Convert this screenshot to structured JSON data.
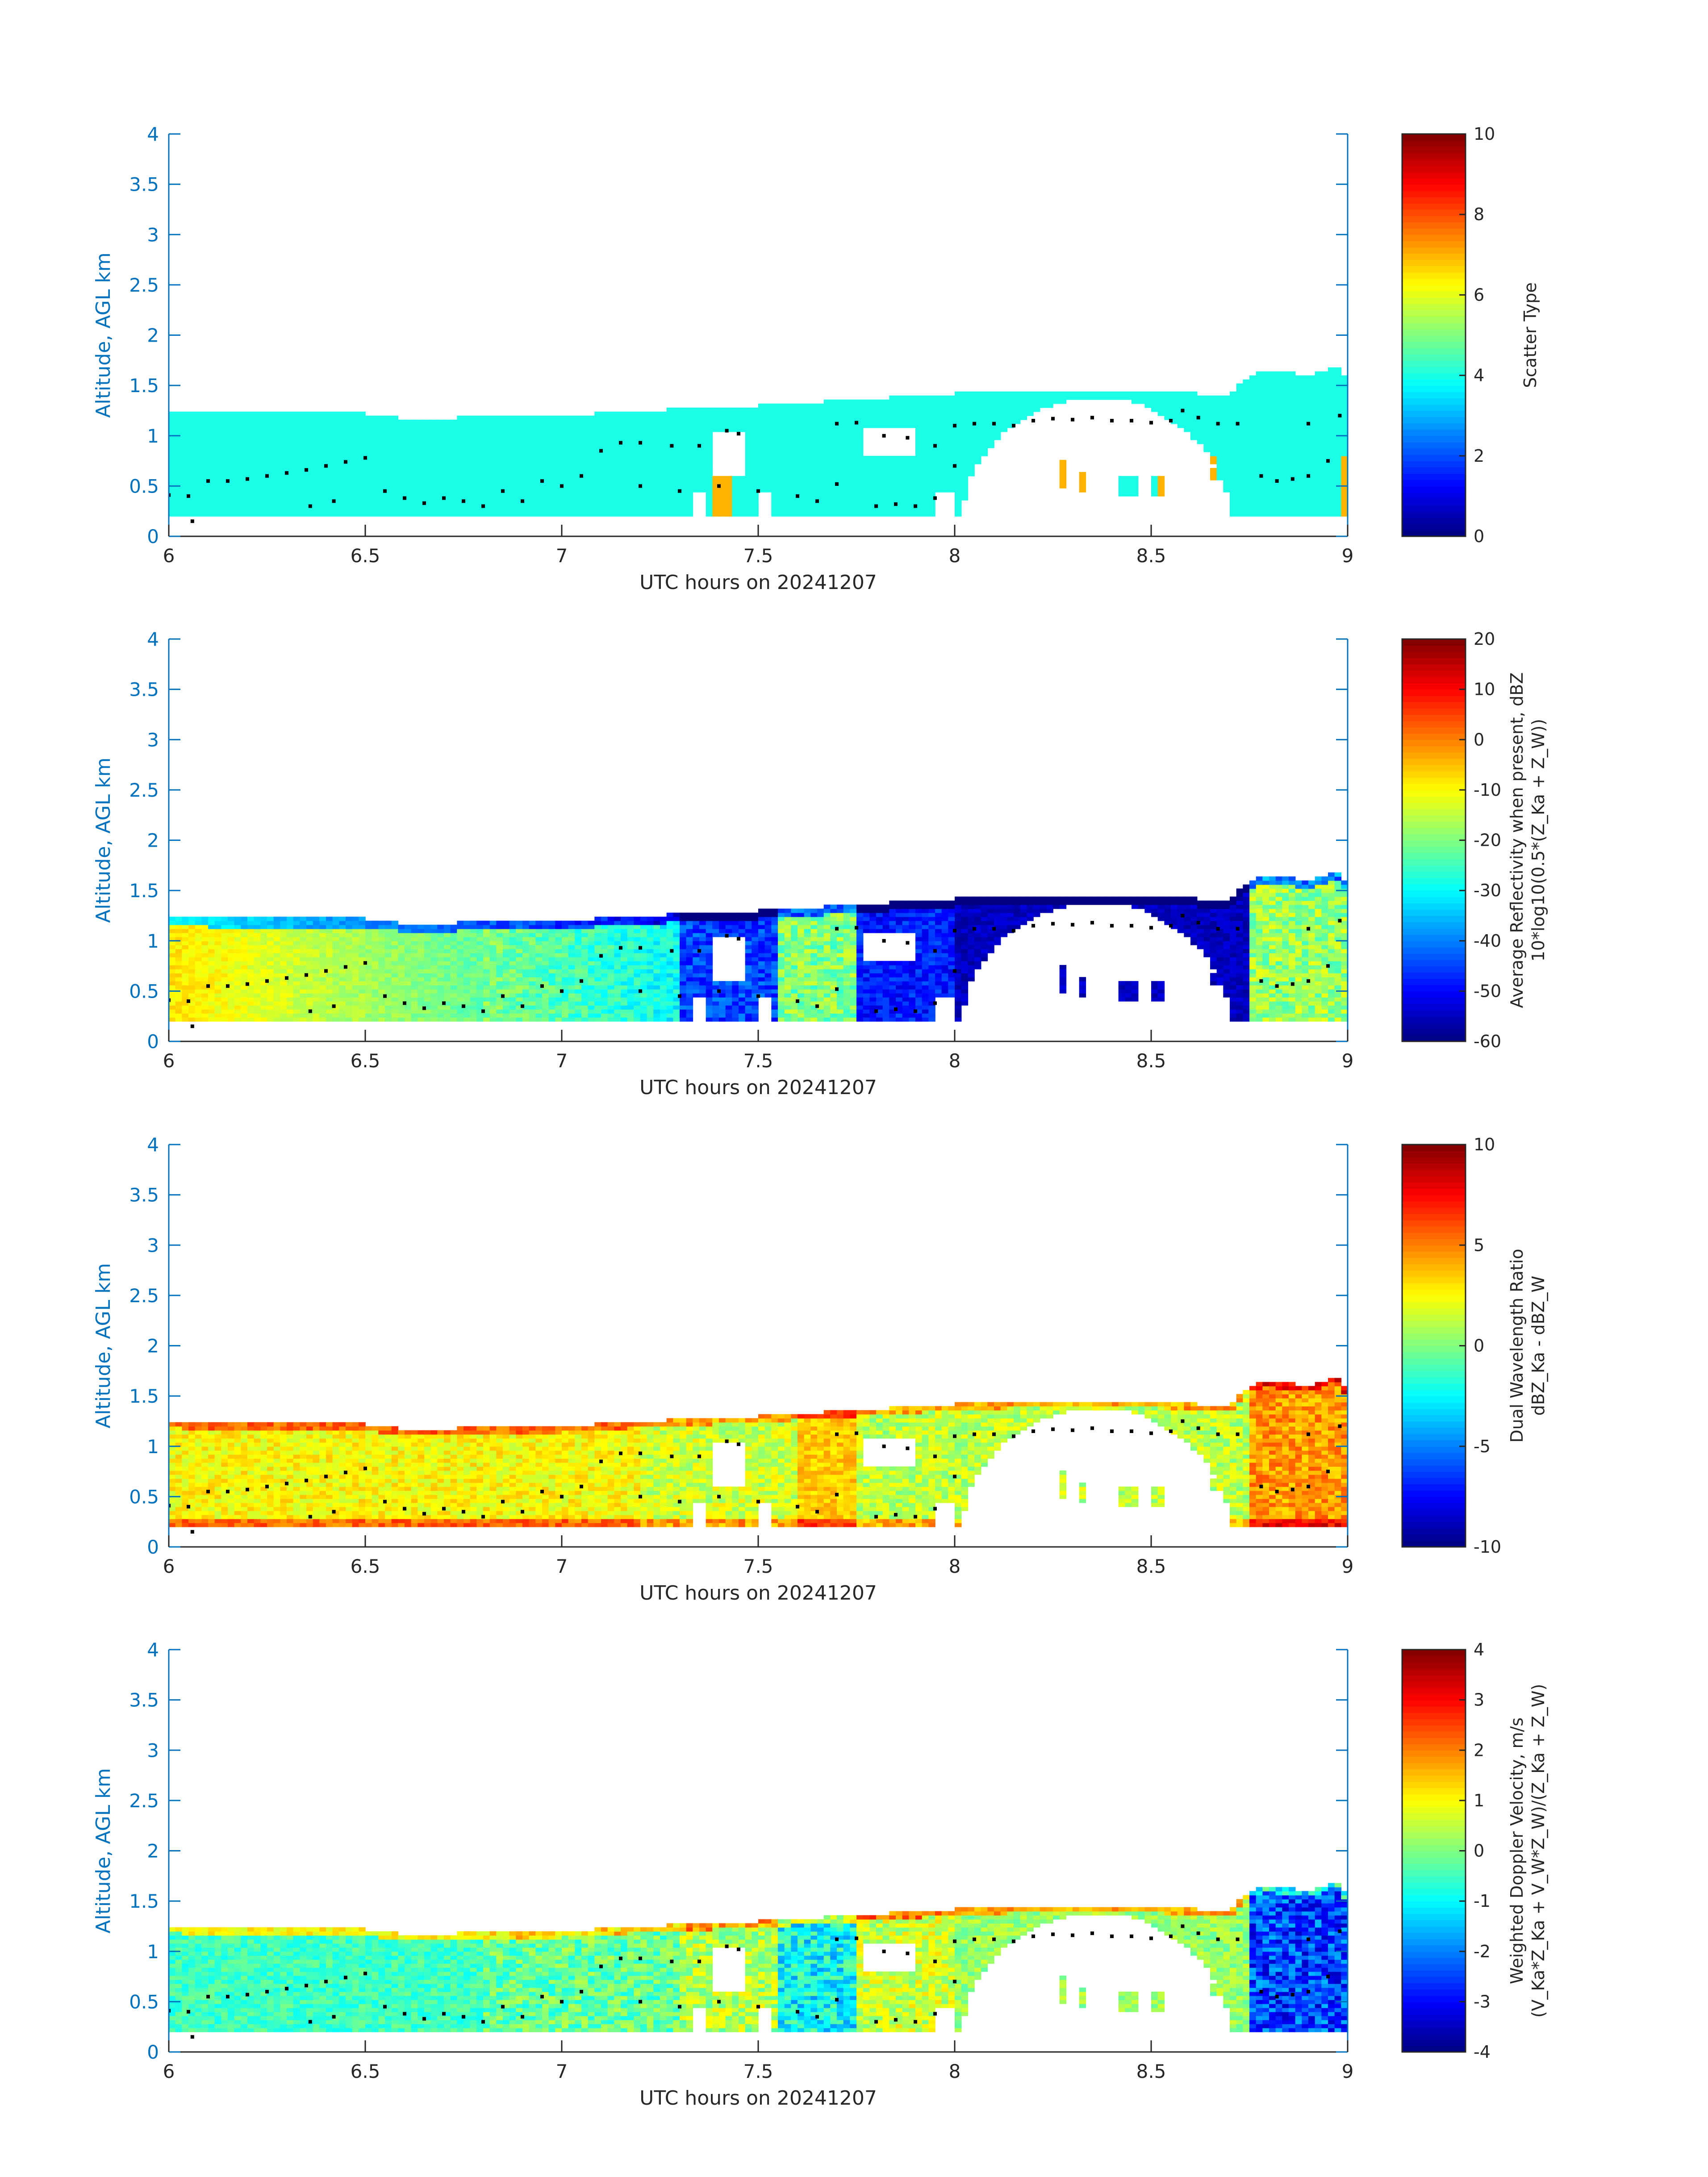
{
  "chart_data": [
    {
      "type": "heatmap",
      "title": "",
      "xlabel": "UTC hours on 20241207",
      "ylabel": "Altitude, AGL km",
      "xlim": [
        6,
        9
      ],
      "ylim": [
        0,
        4
      ],
      "xticks": [
        "6",
        "6.5",
        "7",
        "7.5",
        "8",
        "8.5",
        "9"
      ],
      "yticks": [
        "0",
        "0.5",
        "1",
        "1.5",
        "2",
        "2.5",
        "3",
        "3.5",
        "4"
      ],
      "colorbar": {
        "label_lines": [
          "Scatter Type"
        ],
        "clim": [
          0,
          10
        ],
        "ticks": [
          "0",
          "2",
          "4",
          "6",
          "8",
          "10"
        ],
        "colormap": "jet"
      },
      "field": "scatter_type",
      "typical_value": 4,
      "outlier_value": 7,
      "outlier_times": [
        7.39,
        7.42,
        8.27,
        8.32,
        8.53,
        8.66,
        8.99
      ]
    },
    {
      "type": "heatmap",
      "title": "",
      "xlabel": "UTC hours on 20241207",
      "ylabel": "Altitude, AGL km",
      "xlim": [
        6,
        9
      ],
      "ylim": [
        0,
        4
      ],
      "xticks": [
        "6",
        "6.5",
        "7",
        "7.5",
        "8",
        "8.5",
        "9"
      ],
      "yticks": [
        "0",
        "0.5",
        "1",
        "1.5",
        "2",
        "2.5",
        "3",
        "3.5",
        "4"
      ],
      "colorbar": {
        "label_lines": [
          "Average Reflectivity when present, dBZ",
          "10*log10(0.5*(Z_Ka + Z_W))"
        ],
        "clim": [
          -60,
          20
        ],
        "ticks": [
          "-60",
          "-50",
          "-40",
          "-30",
          "-20",
          "-10",
          "0",
          "10",
          "20"
        ],
        "colormap": "jet"
      },
      "field": "reflectivity"
    },
    {
      "type": "heatmap",
      "title": "",
      "xlabel": "UTC hours on 20241207",
      "ylabel": "Altitude, AGL km",
      "xlim": [
        6,
        9
      ],
      "ylim": [
        0,
        4
      ],
      "xticks": [
        "6",
        "6.5",
        "7",
        "7.5",
        "8",
        "8.5",
        "9"
      ],
      "yticks": [
        "0",
        "0.5",
        "1",
        "1.5",
        "2",
        "2.5",
        "3",
        "3.5",
        "4"
      ],
      "colorbar": {
        "label_lines": [
          "Dual Wavelength Ratio",
          "dBZ_Ka - dBZ_W"
        ],
        "clim": [
          -10,
          10
        ],
        "ticks": [
          "-10",
          "-5",
          "0",
          "5",
          "10"
        ],
        "colormap": "jet"
      },
      "field": "dwr"
    },
    {
      "type": "heatmap",
      "title": "",
      "xlabel": "UTC hours on 20241207",
      "ylabel": "Altitude, AGL km",
      "xlim": [
        6,
        9
      ],
      "ylim": [
        0,
        4
      ],
      "xticks": [
        "6",
        "6.5",
        "7",
        "7.5",
        "8",
        "8.5",
        "9"
      ],
      "yticks": [
        "0",
        "0.5",
        "1",
        "1.5",
        "2",
        "2.5",
        "3",
        "3.5",
        "4"
      ],
      "colorbar": {
        "label_lines": [
          "Weighted Doppler Velocity, m/s",
          "(V_Ka*Z_Ka + V_W*Z_W)/(Z_Ka + Z_W)"
        ],
        "clim": [
          -4,
          4
        ],
        "ticks": [
          "-4",
          "-3",
          "-2",
          "-1",
          "0",
          "1",
          "2",
          "3",
          "4"
        ],
        "colormap": "jet"
      },
      "field": "velocity"
    }
  ],
  "shared": {
    "cloud_top_km": [
      [
        6.0,
        1.25
      ],
      [
        6.1,
        1.22
      ],
      [
        6.5,
        1.22
      ],
      [
        6.6,
        1.17
      ],
      [
        7.0,
        1.2
      ],
      [
        7.2,
        1.25
      ],
      [
        7.5,
        1.3
      ],
      [
        7.7,
        1.35
      ],
      [
        8.0,
        1.42
      ],
      [
        8.2,
        1.45
      ],
      [
        8.5,
        1.45
      ],
      [
        8.7,
        1.4
      ],
      [
        8.75,
        1.6
      ],
      [
        8.8,
        1.65
      ],
      [
        8.9,
        1.6
      ],
      [
        8.97,
        1.7
      ],
      [
        9.0,
        1.55
      ]
    ],
    "cloud_base_km": 0.2,
    "gaps": [
      {
        "t": [
          7.38,
          7.47
        ],
        "z": [
          0.6,
          1.05
        ]
      },
      {
        "t": [
          7.33,
          7.36
        ],
        "z": [
          0.2,
          0.45
        ]
      },
      {
        "t": [
          7.5,
          7.53
        ],
        "z": [
          0.2,
          0.45
        ]
      },
      {
        "t": [
          7.77,
          7.9
        ],
        "z": [
          0.8,
          1.1
        ]
      },
      {
        "t": [
          7.95,
          8.0
        ],
        "z": [
          0.2,
          0.45
        ]
      },
      {
        "t": [
          8.02,
          8.7
        ],
        "z": [
          0.15,
          1.38
        ],
        "profile": "arch"
      }
    ],
    "echo_patches": [
      {
        "t": [
          8.27,
          8.29
        ],
        "z": [
          0.5,
          0.78
        ]
      },
      {
        "t": [
          8.31,
          8.34
        ],
        "z": [
          0.45,
          0.65
        ]
      },
      {
        "t": [
          8.42,
          8.47
        ],
        "z": [
          0.4,
          0.6
        ]
      },
      {
        "t": [
          8.5,
          8.53
        ],
        "z": [
          0.4,
          0.6
        ]
      },
      {
        "t": [
          8.65,
          8.68
        ],
        "z": [
          0.55,
          0.68
        ]
      }
    ],
    "dots_upper": [
      [
        7.1,
        0.85
      ],
      [
        7.15,
        0.93
      ],
      [
        7.2,
        0.93
      ],
      [
        7.28,
        0.9
      ],
      [
        7.35,
        0.9
      ],
      [
        7.42,
        1.05
      ],
      [
        7.45,
        1.02
      ],
      [
        7.7,
        1.12
      ],
      [
        7.75,
        1.13
      ],
      [
        7.82,
        1.0
      ],
      [
        7.88,
        0.98
      ],
      [
        7.95,
        0.9
      ],
      [
        8.0,
        1.1
      ],
      [
        8.05,
        1.12
      ],
      [
        8.1,
        1.12
      ],
      [
        8.15,
        1.1
      ],
      [
        8.2,
        1.15
      ],
      [
        8.25,
        1.17
      ],
      [
        8.3,
        1.16
      ],
      [
        8.35,
        1.18
      ],
      [
        8.4,
        1.15
      ],
      [
        8.45,
        1.15
      ],
      [
        8.5,
        1.13
      ],
      [
        8.55,
        1.15
      ],
      [
        8.58,
        1.25
      ],
      [
        8.62,
        1.18
      ],
      [
        8.67,
        1.12
      ],
      [
        8.72,
        1.12
      ],
      [
        8.9,
        1.12
      ],
      [
        8.98,
        1.2
      ]
    ],
    "dots_lower": [
      [
        6.0,
        0.41
      ],
      [
        6.05,
        0.4
      ],
      [
        6.1,
        0.55
      ],
      [
        6.15,
        0.55
      ],
      [
        6.2,
        0.57
      ],
      [
        6.25,
        0.6
      ],
      [
        6.3,
        0.63
      ],
      [
        6.35,
        0.66
      ],
      [
        6.4,
        0.7
      ],
      [
        6.45,
        0.74
      ],
      [
        6.5,
        0.78
      ],
      [
        6.36,
        0.3
      ],
      [
        6.42,
        0.35
      ],
      [
        6.55,
        0.45
      ],
      [
        6.6,
        0.38
      ],
      [
        6.65,
        0.33
      ],
      [
        6.7,
        0.38
      ],
      [
        6.75,
        0.35
      ],
      [
        6.8,
        0.3
      ],
      [
        6.85,
        0.45
      ],
      [
        6.9,
        0.35
      ],
      [
        6.95,
        0.55
      ],
      [
        7.0,
        0.5
      ],
      [
        7.05,
        0.6
      ],
      [
        7.2,
        0.5
      ],
      [
        7.3,
        0.45
      ],
      [
        7.4,
        0.5
      ],
      [
        7.5,
        0.45
      ],
      [
        7.6,
        0.4
      ],
      [
        7.65,
        0.35
      ],
      [
        7.7,
        0.52
      ],
      [
        7.8,
        0.3
      ],
      [
        7.85,
        0.32
      ],
      [
        7.9,
        0.3
      ],
      [
        7.95,
        0.38
      ],
      [
        8.0,
        0.7
      ],
      [
        8.78,
        0.6
      ],
      [
        8.82,
        0.55
      ],
      [
        8.86,
        0.57
      ],
      [
        8.9,
        0.6
      ],
      [
        8.95,
        0.75
      ],
      [
        6.06,
        0.15
      ]
    ]
  }
}
